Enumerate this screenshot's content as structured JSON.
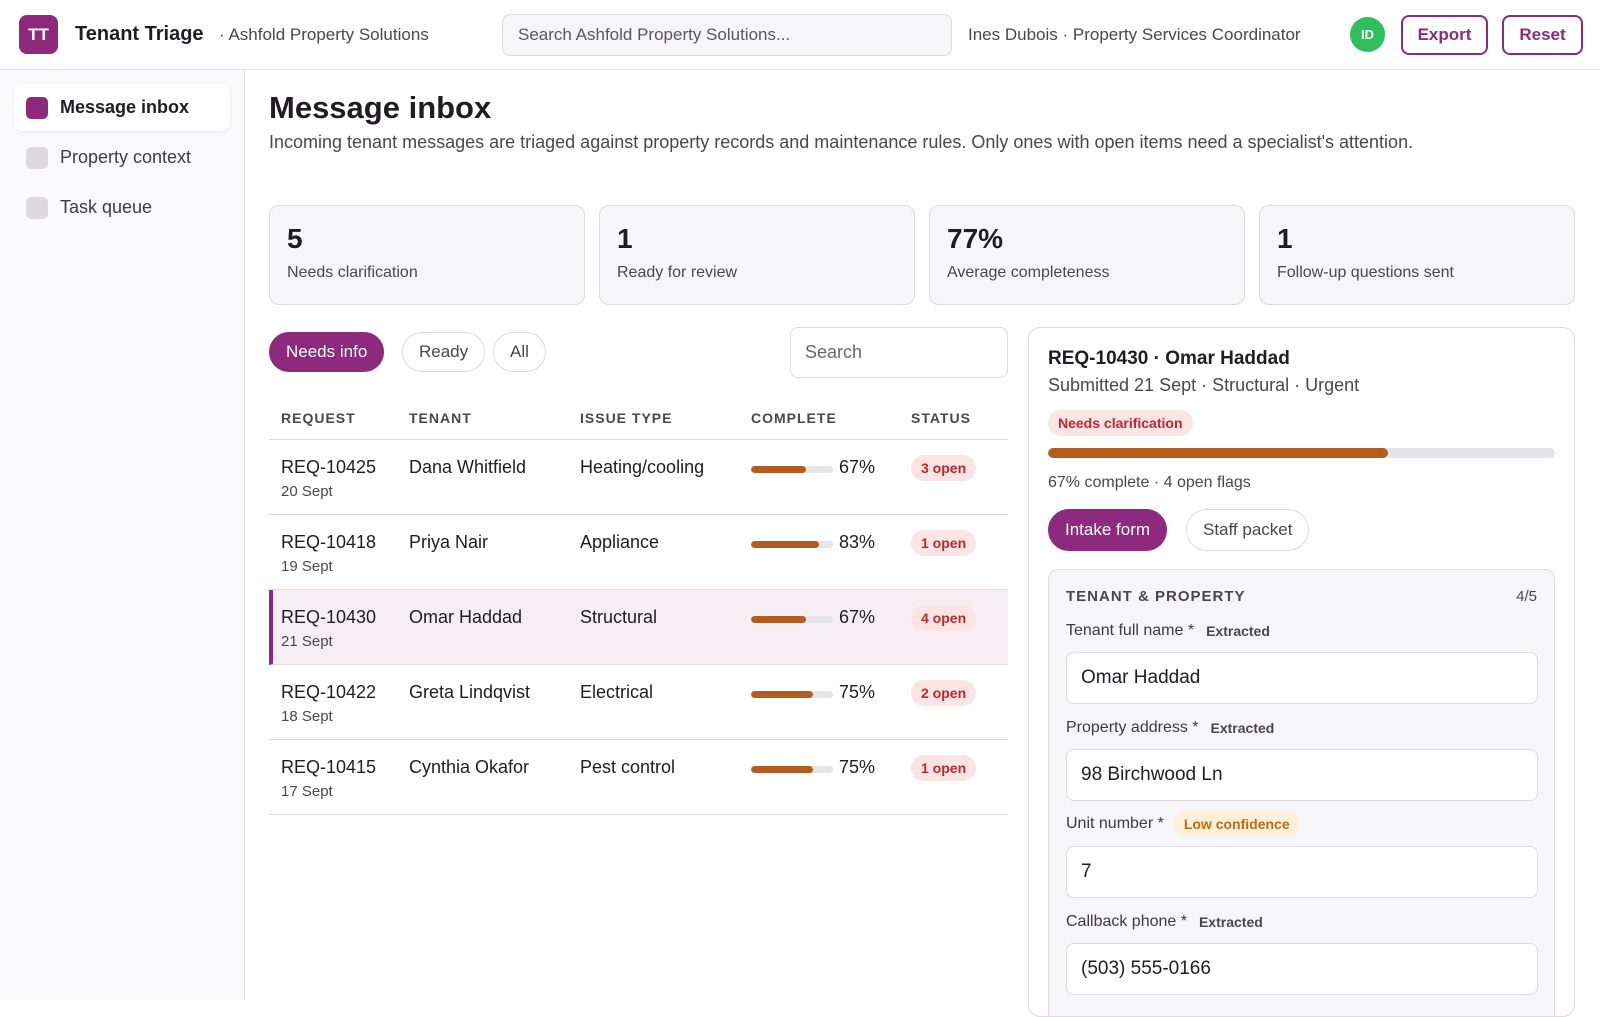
{
  "app": {
    "logo_initials": "TT",
    "title": "Tenant Triage",
    "org": "· Ashfold Property Solutions",
    "search_placeholder": "Search Ashfold Property Solutions...",
    "user_line": "Ines Dubois · Property Services Coordinator",
    "avatar_initials": "ID",
    "export_label": "Export",
    "reset_label": "Reset"
  },
  "sidebar": {
    "items": [
      {
        "label": "Message inbox",
        "active": true
      },
      {
        "label": "Property context",
        "active": false
      },
      {
        "label": "Task queue",
        "active": false
      }
    ]
  },
  "main": {
    "title": "Message inbox",
    "description": "Incoming tenant messages are triaged against property records and maintenance rules. Only ones with open items need a specialist's attention."
  },
  "stats": [
    {
      "value": "5",
      "label": "Needs clarification"
    },
    {
      "value": "1",
      "label": "Ready for review"
    },
    {
      "value": "77%",
      "label": "Average completeness"
    },
    {
      "value": "1",
      "label": "Follow-up questions sent"
    }
  ],
  "filters": {
    "chips": [
      "Needs info",
      "Ready",
      "All"
    ],
    "active": "Needs info",
    "search_placeholder": "Search"
  },
  "table": {
    "headers": [
      "REQUEST",
      "TENANT",
      "ISSUE TYPE",
      "COMPLETE",
      "STATUS"
    ],
    "rows": [
      {
        "id": "REQ-10425",
        "date": "20 Sept",
        "tenant": "Dana Whitfield",
        "issue": "Heating/cooling",
        "complete": 67,
        "complete_label": "67%",
        "status": "3 open",
        "selected": false
      },
      {
        "id": "REQ-10418",
        "date": "19 Sept",
        "tenant": "Priya Nair",
        "issue": "Appliance",
        "complete": 83,
        "complete_label": "83%",
        "status": "1 open",
        "selected": false
      },
      {
        "id": "REQ-10430",
        "date": "21 Sept",
        "tenant": "Omar Haddad",
        "issue": "Structural",
        "complete": 67,
        "complete_label": "67%",
        "status": "4 open",
        "selected": true
      },
      {
        "id": "REQ-10422",
        "date": "18 Sept",
        "tenant": "Greta Lindqvist",
        "issue": "Electrical",
        "complete": 75,
        "complete_label": "75%",
        "status": "2 open",
        "selected": false
      },
      {
        "id": "REQ-10415",
        "date": "17 Sept",
        "tenant": "Cynthia Okafor",
        "issue": "Pest control",
        "complete": 75,
        "complete_label": "75%",
        "status": "1 open",
        "selected": false
      }
    ]
  },
  "detail": {
    "title": "REQ-10430 · Omar Haddad",
    "subtitle": "Submitted 21 Sept · Structural · Urgent",
    "badge": "Needs clarification",
    "progress": 67,
    "progress_text": "67% complete · 4 open flags",
    "tabs": [
      "Intake form",
      "Staff packet"
    ],
    "active_tab": "Intake form",
    "section": {
      "title": "TENANT & PROPERTY",
      "count": "4/5",
      "fields": [
        {
          "label": "Tenant full name *",
          "tag": "Extracted",
          "warn": false,
          "value": "Omar Haddad"
        },
        {
          "label": "Property address *",
          "tag": "Extracted",
          "warn": false,
          "value": "98 Birchwood Ln"
        },
        {
          "label": "Unit number *",
          "tag": "Low confidence",
          "warn": true,
          "value": "7"
        },
        {
          "label": "Callback phone *",
          "tag": "Extracted",
          "warn": false,
          "value": "(503) 555-0166"
        }
      ]
    }
  },
  "colors": {
    "accent": "#8e2a7e",
    "progress": "#b35c1e",
    "danger_bg": "#fbe4e4",
    "danger_text": "#c0262d",
    "warn_bg": "#fdf0d9",
    "warn_text": "#c06a12",
    "avatar": "#2fbf5b"
  }
}
